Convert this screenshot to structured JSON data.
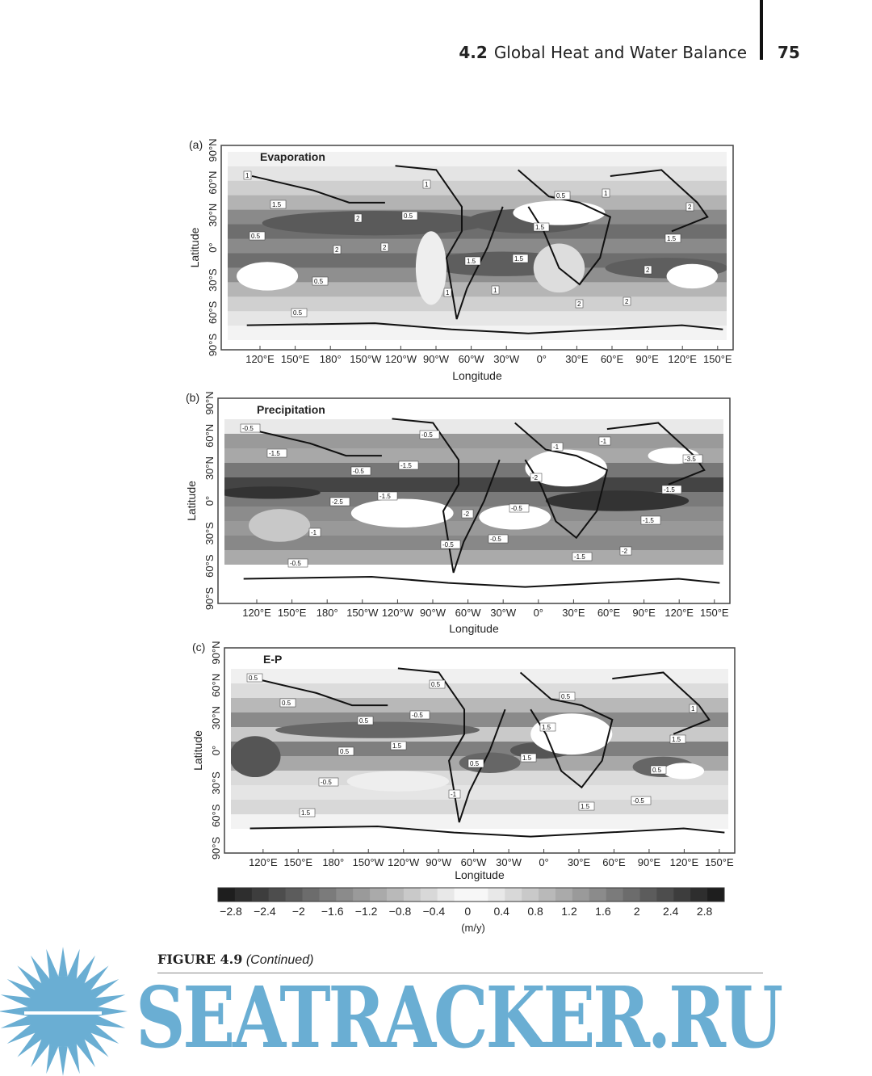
{
  "running_head": {
    "section": "4.2",
    "title": "Global Heat and Water Balance",
    "page_number": "75"
  },
  "figure": {
    "caption_label": "FIGURE 4.9",
    "caption_text": "(Continued)",
    "lon_ticks": [
      "120°E",
      "150°E",
      "180°",
      "150°W",
      "120°W",
      "90°W",
      "60°W",
      "30°W",
      "0°",
      "30°E",
      "60°E",
      "90°E",
      "120°E",
      "150°E"
    ],
    "lat_ticks": [
      "90°N",
      "60°N",
      "30°N",
      "0°",
      "30°S",
      "60°S",
      "90°S"
    ],
    "xlabel": "Longitude",
    "ylabel": "Latitude",
    "panels": [
      {
        "letter": "(a)",
        "title": "Evaporation",
        "contour_labels": [
          "1",
          "2",
          "1.5",
          "2",
          "2",
          "2",
          "1",
          "0.5",
          "1.5",
          "0.5",
          "1",
          "1.5",
          "2",
          "0.5",
          "0.5",
          "1.5",
          "2",
          "1.5",
          "2",
          "1",
          "1",
          "0.5"
        ]
      },
      {
        "letter": "(b)",
        "title": "Precipitation",
        "contour_labels": [
          "-0.5",
          "-0.5",
          "-2",
          "-1.5",
          "-3.5",
          "-2.5",
          "-0.5",
          "-1",
          "-1.5",
          "-1",
          "-0.5",
          "-2",
          "-1.5",
          "-0.5",
          "-1.5",
          "-0.5",
          "-2",
          "-1.5",
          "-1.5",
          "-0.5",
          "-1"
        ]
      },
      {
        "letter": "(c)",
        "title": "E-P",
        "contour_labels": [
          "0.5",
          "0.5",
          "0.5",
          "1.5",
          "1",
          "0.5",
          "-1",
          "0.5",
          "1.5",
          "-0.5",
          "0.5",
          "1.5",
          "0.5",
          "1.5",
          "-0.5",
          "1.5",
          "-0.5",
          "0.5",
          "1.5"
        ]
      }
    ],
    "colorbar": {
      "ticks": [
        "−2.8",
        "−2.4",
        "−2",
        "−1.6",
        "−1.2",
        "−0.8",
        "−0.4",
        "0",
        "0.4",
        "0.8",
        "1.2",
        "1.6",
        "2",
        "2.4",
        "2.8"
      ],
      "unit": "(m/y)"
    }
  },
  "watermark": {
    "text": "SEATRACKER.RU",
    "color": "#6aaed3"
  }
}
